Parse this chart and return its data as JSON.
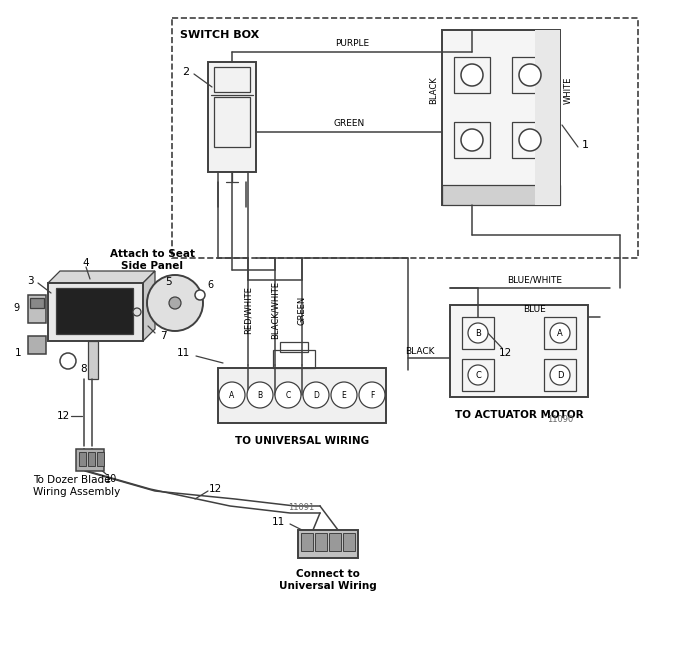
{
  "bg_color": "#ffffff",
  "lc": "#404040",
  "fig_width": 6.8,
  "fig_height": 6.6,
  "dpi": 100,
  "labels": {
    "switch_box": "SWITCH BOX",
    "to_universal": "TO UNIVERSAL WIRING",
    "to_actuator": "TO ACTUATOR MOTOR",
    "attach_seat": "Attach to Seat\nSide Panel",
    "dozer_blade": "To Dozer Blade\nWiring Assembly",
    "connect_universal": "Connect to\nUniversal Wiring",
    "part_num_1": "11090",
    "part_num_2": "11091",
    "purple": "PURPLE",
    "green": "GREEN",
    "black_sw": "BLACK",
    "white_sw": "WHITE",
    "red_white": "RED/WHITE",
    "black_white": "BLACK/WHITE",
    "green2": "GREEN",
    "blue_white": "BLUE/WHITE",
    "blue": "BLUE",
    "black_act": "BLACK"
  }
}
